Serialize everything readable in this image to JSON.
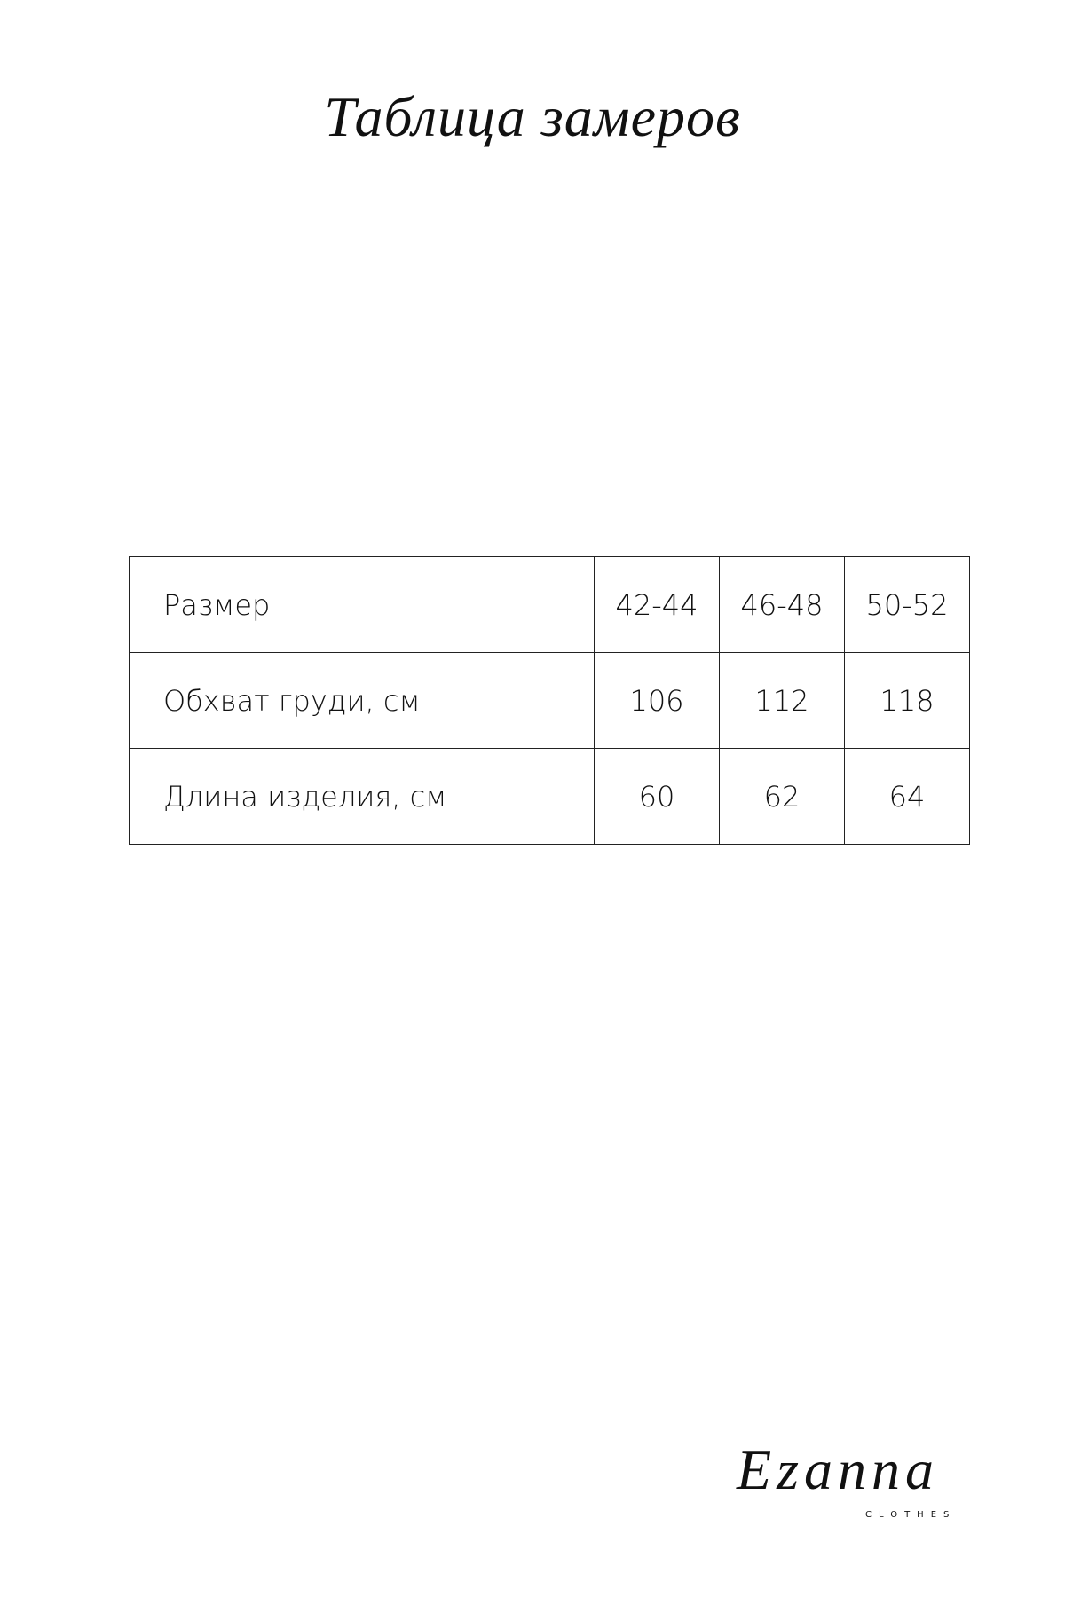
{
  "header": {
    "title": "Таблица замеров"
  },
  "table": {
    "rows": [
      [
        "Размер",
        "42-44",
        "46-48",
        "50-52"
      ],
      [
        "Обхват груди, см",
        106,
        112,
        118
      ],
      [
        "Длина изделия, см",
        60,
        62,
        64
      ]
    ]
  },
  "footer": {
    "brand": "Ezanna",
    "tagline": "CLOTHES"
  }
}
